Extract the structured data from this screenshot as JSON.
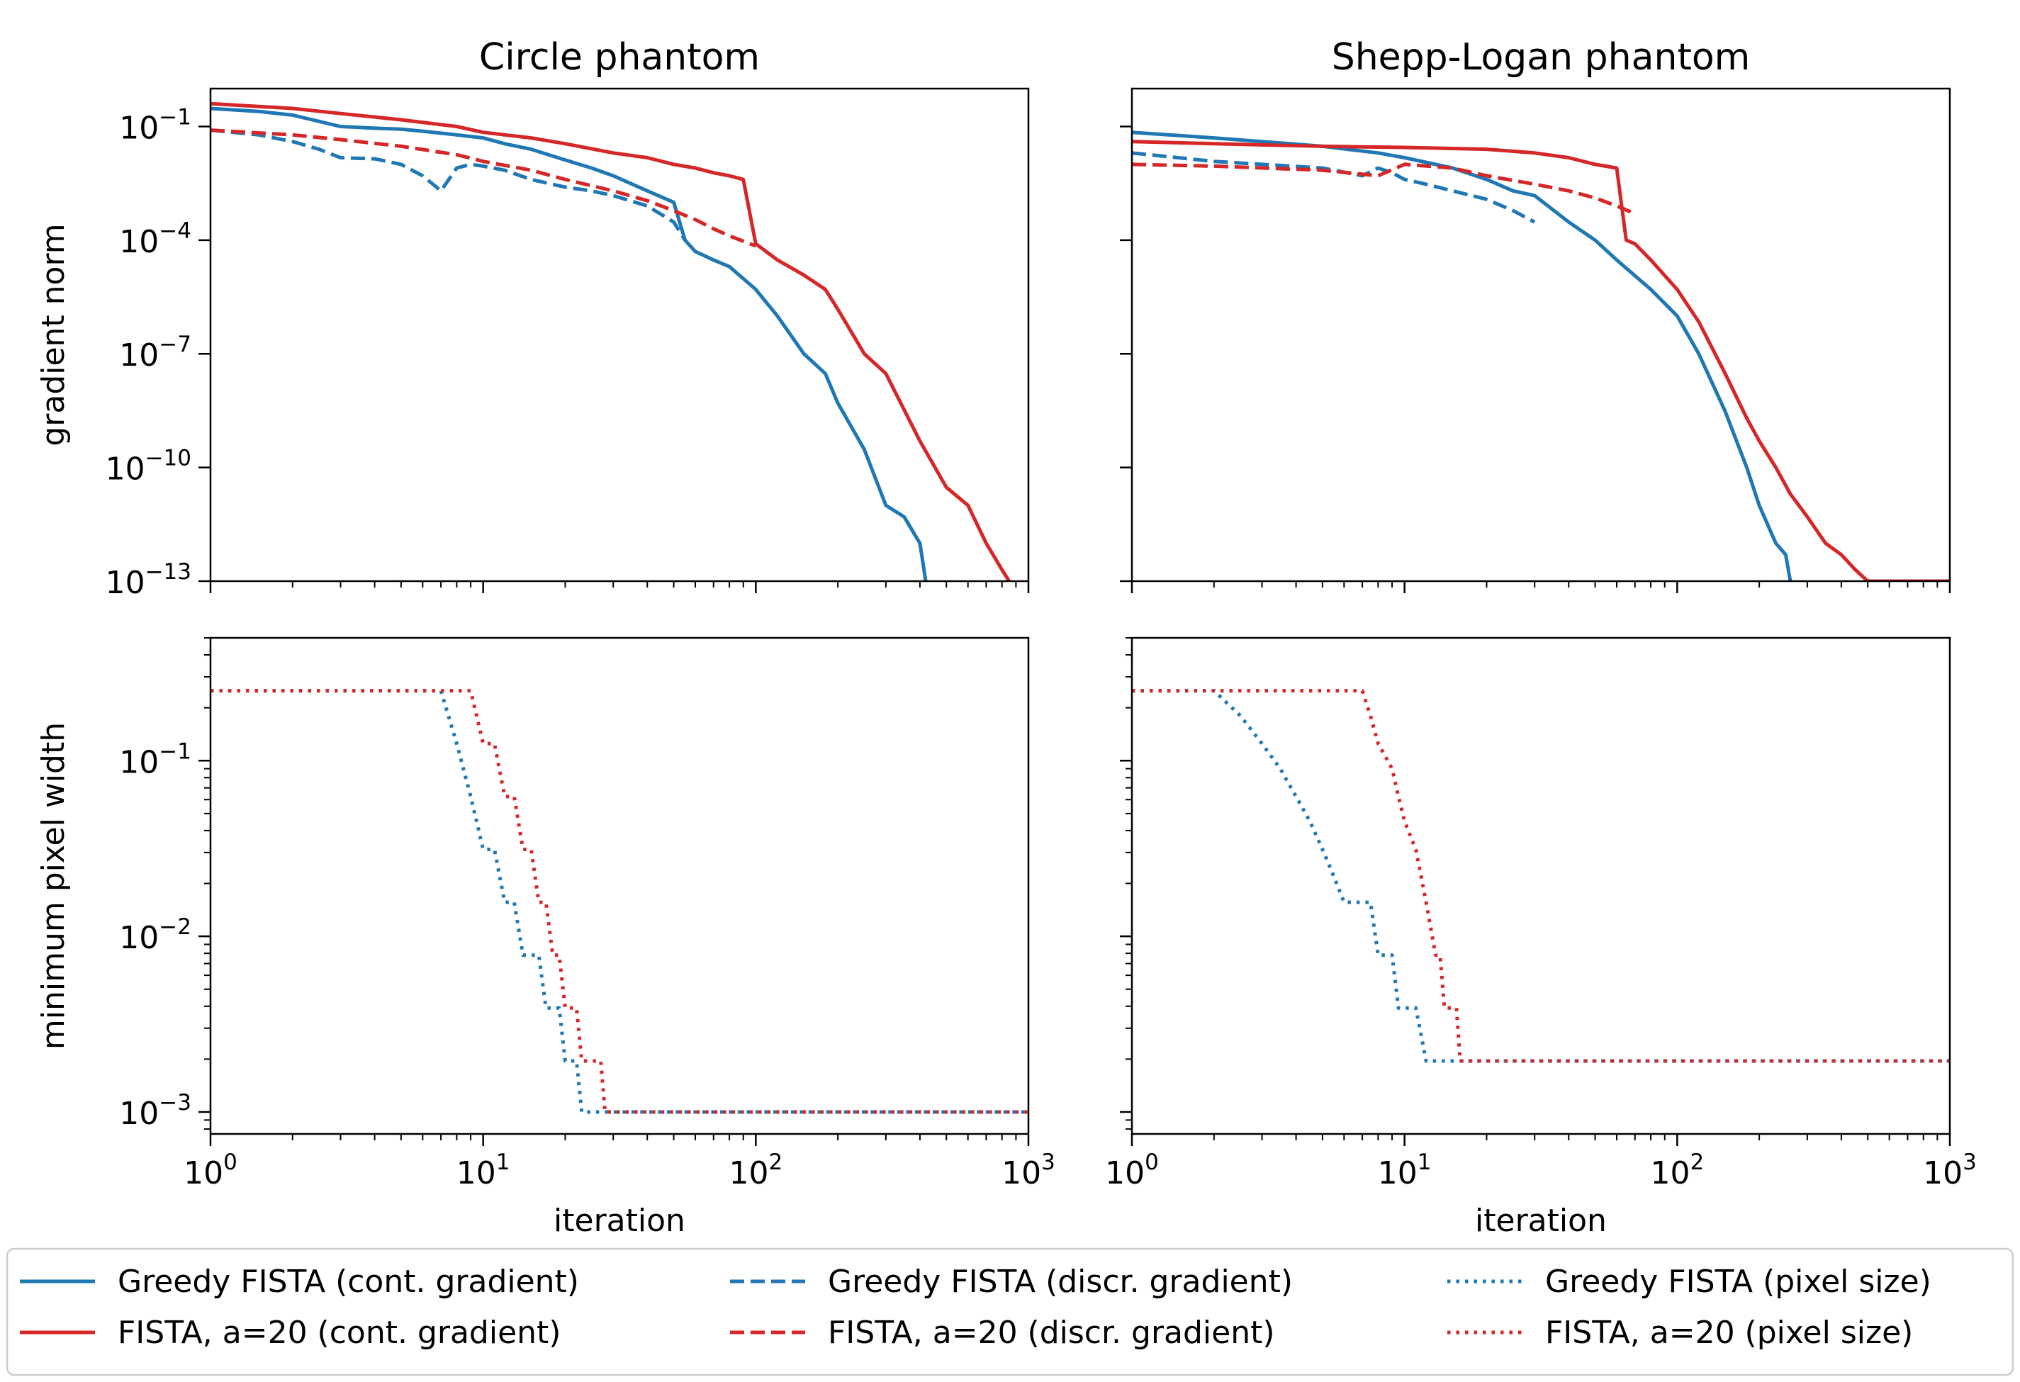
{
  "colors": {
    "greedy": "#1f77b4",
    "fista": "#d62728",
    "axis": "#000000"
  },
  "legend": {
    "placement": "bottom",
    "entries": [
      {
        "label": "Greedy FISTA (cont. gradient)",
        "color": "#1f77b4",
        "style": "solid"
      },
      {
        "label": "Greedy FISTA (discr. gradient)",
        "color": "#1f77b4",
        "style": "dashed"
      },
      {
        "label": "Greedy FISTA (pixel size)",
        "color": "#1f77b4",
        "style": "dotted"
      },
      {
        "label": "FISTA, a=20 (cont. gradient)",
        "color": "#d62728",
        "style": "solid"
      },
      {
        "label": "FISTA, a=20 (discr. gradient)",
        "color": "#d62728",
        "style": "dashed"
      },
      {
        "label": "FISTA, a=20 (pixel size)",
        "color": "#d62728",
        "style": "dotted"
      }
    ]
  },
  "chart_data": [
    {
      "type": "line",
      "title": "Circle phantom",
      "xlabel": "",
      "ylabel": "gradient norm",
      "xscale": "log",
      "yscale": "log",
      "xlim": [
        1,
        1000
      ],
      "ylim": [
        1e-13,
        1
      ],
      "xticks": [],
      "xtick_labels": [],
      "yticks": [
        1e-13,
        1e-10,
        1e-07,
        0.0001,
        0.1
      ],
      "ytick_labels": [
        {
          "base": "10",
          "exp": "−13"
        },
        {
          "base": "10",
          "exp": "−10"
        },
        {
          "base": "10",
          "exp": "−7"
        },
        {
          "base": "10",
          "exp": "−4"
        },
        {
          "base": "10",
          "exp": "−1"
        }
      ],
      "series": [
        {
          "key": "greedy_cont",
          "color": "#1f77b4",
          "style": "solid",
          "x": [
            1,
            1.5,
            2,
            3,
            4,
            5,
            6,
            8,
            10,
            12,
            15,
            20,
            25,
            30,
            40,
            50,
            55,
            60,
            70,
            80,
            100,
            120,
            150,
            180,
            200,
            250,
            300,
            350,
            400,
            420
          ],
          "y": [
            0.3,
            0.25,
            0.2,
            0.1,
            0.09,
            0.085,
            0.075,
            0.06,
            0.05,
            0.035,
            0.025,
            0.013,
            0.008,
            0.005,
            0.002,
            0.001,
            0.0001,
            5e-05,
            3e-05,
            2e-05,
            5e-06,
            1e-06,
            1e-07,
            3e-08,
            5e-09,
            3e-10,
            1e-11,
            5e-12,
            1e-12,
            1e-13
          ]
        },
        {
          "key": "greedy_discr",
          "color": "#1f77b4",
          "style": "dashed",
          "x": [
            1,
            1.5,
            2,
            2.5,
            3,
            4,
            5,
            6,
            7,
            8,
            9,
            10,
            12,
            15,
            20,
            25,
            30,
            40,
            50,
            55
          ],
          "y": [
            0.08,
            0.06,
            0.04,
            0.025,
            0.015,
            0.014,
            0.01,
            0.005,
            0.002,
            0.008,
            0.01,
            0.009,
            0.007,
            0.004,
            0.0025,
            0.002,
            0.0015,
            0.0008,
            0.0003,
            0.0001
          ]
        },
        {
          "key": "fista_cont",
          "color": "#d62728",
          "style": "solid",
          "x": [
            1,
            2,
            3,
            5,
            8,
            10,
            15,
            20,
            30,
            40,
            50,
            60,
            70,
            80,
            90,
            100,
            120,
            150,
            180,
            200,
            250,
            300,
            400,
            500,
            600,
            700,
            800,
            850
          ],
          "y": [
            0.4,
            0.3,
            0.22,
            0.15,
            0.1,
            0.07,
            0.05,
            0.035,
            0.02,
            0.015,
            0.01,
            0.008,
            0.006,
            0.005,
            0.004,
            8e-05,
            3e-05,
            1.2e-05,
            5e-06,
            1.5e-06,
            1e-07,
            3e-08,
            5e-10,
            3e-11,
            1e-11,
            1e-12,
            2e-13,
            1e-13
          ]
        },
        {
          "key": "fista_discr",
          "color": "#d62728",
          "style": "dashed",
          "x": [
            1,
            2,
            3,
            5,
            8,
            10,
            15,
            20,
            30,
            40,
            50,
            60,
            70,
            80,
            100
          ],
          "y": [
            0.08,
            0.06,
            0.045,
            0.03,
            0.018,
            0.012,
            0.007,
            0.004,
            0.002,
            0.0011,
            0.0006,
            0.00035,
            0.0002,
            0.00013,
            7e-05
          ]
        }
      ]
    },
    {
      "type": "line",
      "title": "Shepp-Logan phantom",
      "xlabel": "",
      "ylabel": "",
      "xscale": "log",
      "yscale": "log",
      "xlim": [
        1,
        1000
      ],
      "ylim": [
        1e-13,
        1
      ],
      "xticks": [],
      "xtick_labels": [],
      "yticks": [
        1e-13,
        1e-10,
        1e-07,
        0.0001,
        0.1
      ],
      "ytick_labels": [],
      "series": [
        {
          "key": "greedy_cont",
          "color": "#1f77b4",
          "style": "solid",
          "x": [
            1,
            2,
            3,
            5,
            8,
            10,
            15,
            20,
            25,
            30,
            40,
            50,
            60,
            80,
            100,
            120,
            150,
            180,
            200,
            230,
            250,
            260
          ],
          "y": [
            0.07,
            0.05,
            0.04,
            0.03,
            0.02,
            0.015,
            0.008,
            0.004,
            0.002,
            0.0015,
            0.0003,
            0.0001,
            3e-05,
            5e-06,
            1e-06,
            1e-07,
            3e-09,
            1e-10,
            1e-11,
            1e-12,
            5e-13,
            1e-13
          ]
        },
        {
          "key": "greedy_discr",
          "color": "#1f77b4",
          "style": "dashed",
          "x": [
            1,
            2,
            3,
            5,
            7,
            8,
            9,
            10,
            12,
            15,
            20,
            25,
            30
          ],
          "y": [
            0.02,
            0.012,
            0.01,
            0.008,
            0.005,
            0.008,
            0.006,
            0.004,
            0.003,
            0.002,
            0.0012,
            0.0006,
            0.0003
          ]
        },
        {
          "key": "fista_cont",
          "color": "#d62728",
          "style": "solid",
          "x": [
            1,
            2,
            5,
            10,
            20,
            30,
            40,
            50,
            60,
            65,
            70,
            80,
            100,
            120,
            150,
            180,
            200,
            230,
            260,
            300,
            350,
            400,
            450,
            500,
            1000
          ],
          "y": [
            0.04,
            0.035,
            0.03,
            0.028,
            0.025,
            0.02,
            0.015,
            0.01,
            0.008,
            0.0001,
            8e-05,
            3e-05,
            5e-06,
            7e-07,
            3e-08,
            2e-09,
            5e-10,
            1e-10,
            2e-11,
            5e-12,
            1e-12,
            5e-13,
            2e-13,
            1e-13,
            1e-13
          ]
        },
        {
          "key": "fista_discr",
          "color": "#d62728",
          "style": "dashed",
          "x": [
            1,
            2,
            5,
            8,
            10,
            15,
            20,
            30,
            40,
            50,
            60,
            70
          ],
          "y": [
            0.01,
            0.009,
            0.007,
            0.005,
            0.01,
            0.008,
            0.005,
            0.003,
            0.002,
            0.0013,
            0.0008,
            0.0005
          ]
        }
      ]
    },
    {
      "type": "line",
      "title": "",
      "xlabel": "iteration",
      "ylabel": "minimum pixel width",
      "xscale": "log",
      "yscale": "log",
      "xlim": [
        1,
        1000
      ],
      "ylim": [
        0.00075,
        0.5
      ],
      "xticks": [
        1,
        10,
        100,
        1000
      ],
      "xtick_labels": [
        {
          "base": "10",
          "exp": "0"
        },
        {
          "base": "10",
          "exp": "1"
        },
        {
          "base": "10",
          "exp": "2"
        },
        {
          "base": "10",
          "exp": "3"
        }
      ],
      "yticks": [
        0.001,
        0.01,
        0.1
      ],
      "ytick_labels": [
        {
          "base": "10",
          "exp": "−3"
        },
        {
          "base": "10",
          "exp": "−2"
        },
        {
          "base": "10",
          "exp": "−1"
        }
      ],
      "series": [
        {
          "key": "greedy_pixel",
          "color": "#1f77b4",
          "style": "dotted",
          "x": [
            1,
            7,
            8,
            9,
            10,
            11,
            12,
            13,
            14,
            15,
            16,
            17,
            18,
            19,
            20,
            21,
            22,
            23,
            24,
            25,
            1000
          ],
          "y": [
            0.25,
            0.25,
            0.125,
            0.0625,
            0.03125,
            0.03125,
            0.015625,
            0.015625,
            0.0078125,
            0.0078125,
            0.0078125,
            0.00390625,
            0.00390625,
            0.00390625,
            0.001953125,
            0.001953125,
            0.001953125,
            0.001,
            0.001,
            0.001,
            0.001
          ]
        },
        {
          "key": "fista_pixel",
          "color": "#d62728",
          "style": "dotted",
          "x": [
            1,
            9,
            10,
            11,
            12,
            13,
            14,
            15,
            16,
            17,
            18,
            19,
            20,
            21,
            22,
            23,
            24,
            25,
            26,
            27,
            28,
            29,
            30,
            1000
          ],
          "y": [
            0.25,
            0.25,
            0.125,
            0.125,
            0.0625,
            0.0625,
            0.03125,
            0.03125,
            0.015625,
            0.015625,
            0.0078125,
            0.0078125,
            0.00390625,
            0.00390625,
            0.00390625,
            0.001953125,
            0.001953125,
            0.001953125,
            0.001953125,
            0.001953125,
            0.001,
            0.001,
            0.001,
            0.001
          ]
        }
      ]
    },
    {
      "type": "line",
      "title": "",
      "xlabel": "iteration",
      "ylabel": "",
      "xscale": "log",
      "yscale": "log",
      "xlim": [
        1,
        1000
      ],
      "ylim": [
        0.00075,
        0.5
      ],
      "xticks": [
        1,
        10,
        100,
        1000
      ],
      "xtick_labels": [
        {
          "base": "10",
          "exp": "0"
        },
        {
          "base": "10",
          "exp": "1"
        },
        {
          "base": "10",
          "exp": "2"
        },
        {
          "base": "10",
          "exp": "3"
        }
      ],
      "yticks": [
        0.001,
        0.01,
        0.1
      ],
      "ytick_labels": [],
      "series": [
        {
          "key": "greedy_pixel",
          "color": "#1f77b4",
          "style": "dotted",
          "x": [
            1,
            2,
            2.5,
            3,
            3.5,
            4,
            4.5,
            5,
            5.5,
            6,
            7,
            7.5,
            8,
            8.5,
            9,
            9.5,
            10,
            10.5,
            11,
            12,
            1000
          ],
          "y": [
            0.25,
            0.25,
            0.18,
            0.125,
            0.09,
            0.0625,
            0.045,
            0.03125,
            0.022,
            0.015625,
            0.015625,
            0.015625,
            0.0078125,
            0.0078125,
            0.0078125,
            0.00390625,
            0.00390625,
            0.00390625,
            0.00390625,
            0.001953125,
            0.001953125
          ]
        },
        {
          "key": "fista_pixel",
          "color": "#d62728",
          "style": "dotted",
          "x": [
            1,
            7,
            7.5,
            8,
            9,
            9.5,
            10,
            11,
            11.5,
            12,
            13,
            13.5,
            14,
            15,
            15.5,
            16,
            17,
            18,
            1000
          ],
          "y": [
            0.25,
            0.25,
            0.18,
            0.125,
            0.09,
            0.0625,
            0.045,
            0.03125,
            0.022,
            0.015625,
            0.0078125,
            0.0078125,
            0.00390625,
            0.00390625,
            0.00390625,
            0.001953125,
            0.001953125,
            0.001953125,
            0.001953125
          ]
        }
      ]
    }
  ]
}
